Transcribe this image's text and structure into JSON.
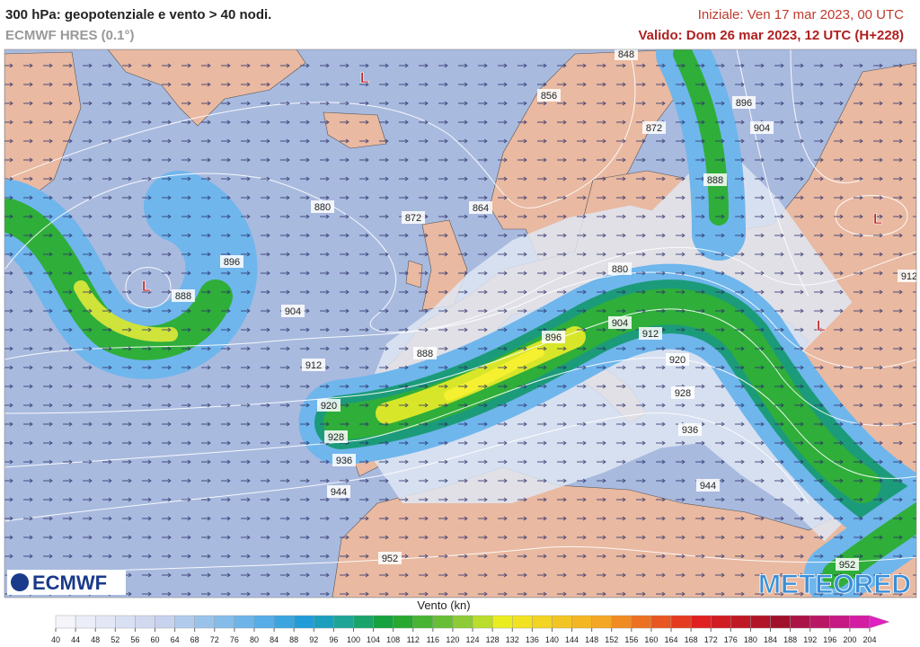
{
  "header": {
    "title": "300 hPa: geopotenziale e vento > 40 nodi.",
    "subtitle": "ECMWF HRES (0.1°)",
    "initial": "Iniziale: Ven 17 mar 2023, 00 UTC",
    "valid": "Valido: Dom 26 mar 2023, 12 UTC (H+228)"
  },
  "map": {
    "contour_labels": [
      848,
      856,
      872,
      896,
      904,
      888,
      880,
      872,
      864,
      896,
      888,
      904,
      912,
      888,
      920,
      928,
      936,
      944,
      952,
      880,
      904,
      896,
      912,
      920,
      928,
      936,
      944,
      952,
      912
    ],
    "lows": [
      "L",
      "L",
      "L",
      "L"
    ],
    "logo_left": "ECMWF",
    "logo_right": "METEORED"
  },
  "legend": {
    "title": "Vento (kn)",
    "ticks": [
      40,
      44,
      48,
      52,
      56,
      60,
      64,
      68,
      72,
      76,
      80,
      84,
      88,
      92,
      96,
      100,
      104,
      108,
      112,
      116,
      120,
      124,
      128,
      132,
      136,
      140,
      144,
      148,
      152,
      156,
      160,
      164,
      168,
      172,
      176,
      180,
      184,
      188,
      192,
      196,
      200,
      204
    ]
  }
}
